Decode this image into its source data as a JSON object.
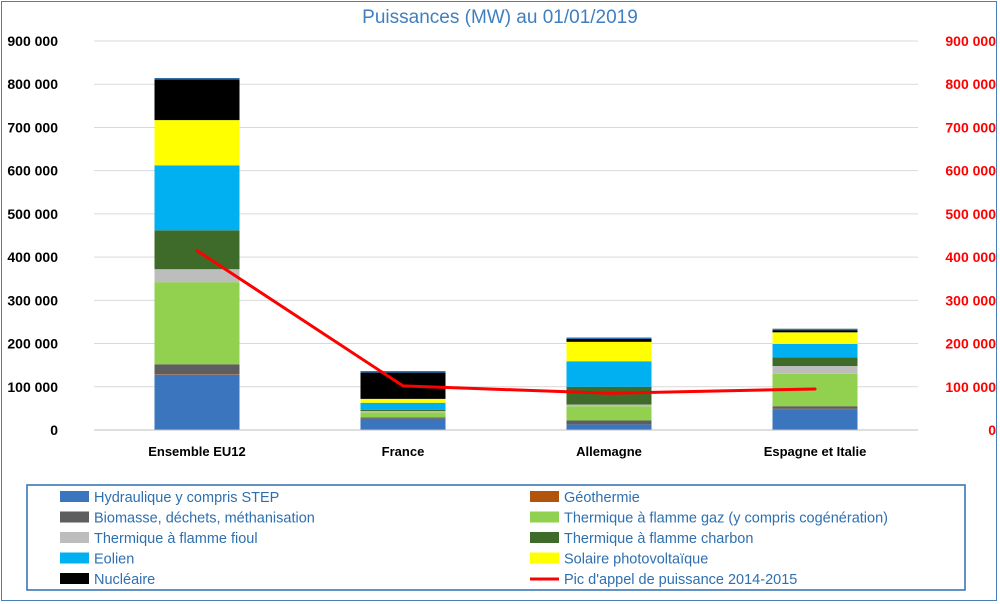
{
  "chart_data": {
    "type": "bar",
    "stacked": true,
    "title": "Puissances (MW) au 01/01/2019",
    "categories": [
      "Ensemble EU12",
      "France",
      "Allemagne",
      "Espagne et Italie"
    ],
    "ylim": [
      0,
      900000
    ],
    "y_ticks": [
      "0",
      "100 000",
      "200 000",
      "300 000",
      "400 000",
      "500 000",
      "600 000",
      "700 000",
      "800 000",
      "900 000"
    ],
    "series": [
      {
        "name": "Hydraulique y compris STEP",
        "color": "#3a75be",
        "values": [
          128000,
          26000,
          13000,
          48000
        ]
      },
      {
        "name": "Géothermie",
        "color": "#b3540c",
        "values": [
          1000,
          0,
          0,
          1000
        ]
      },
      {
        "name": "Biomasse, déchets, méthanisation",
        "color": "#5e5e5e",
        "values": [
          23000,
          3000,
          9000,
          6000
        ]
      },
      {
        "name": "Thermique à flamme gaz (y compris cogénération)",
        "color": "#92d050",
        "values": [
          190000,
          12000,
          33000,
          75000
        ]
      },
      {
        "name": "Thermique à flamme fioul",
        "color": "#bdbdbd",
        "values": [
          30000,
          3000,
          4000,
          18000
        ]
      },
      {
        "name": "Thermique à flamme charbon",
        "color": "#3f6b2a",
        "values": [
          90000,
          3000,
          41000,
          20000
        ]
      },
      {
        "name": "Eolien",
        "color": "#00b0f0",
        "values": [
          150000,
          16000,
          59000,
          31000
        ]
      },
      {
        "name": "Solaire photovoltaïque",
        "color": "#ffff00",
        "values": [
          105000,
          9000,
          45000,
          27000
        ]
      },
      {
        "name": "Nucléaire",
        "color": "#000000",
        "values": [
          97000,
          64000,
          10000,
          8000
        ]
      }
    ],
    "line_series": {
      "name": "Pic d'appel de puissance 2014-2015",
      "color": "#ff0000",
      "values": [
        415000,
        102000,
        85000,
        95000
      ]
    }
  }
}
